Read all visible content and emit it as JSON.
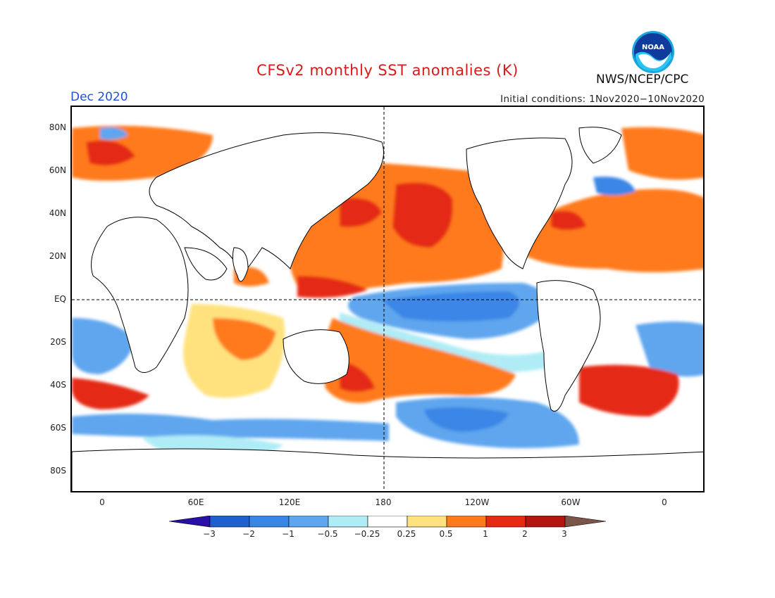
{
  "header": {
    "title": "CFSv2 monthly SST anomalies (K)",
    "month": "Dec 2020",
    "initial_conditions": "Initial conditions: 1Nov2020−10Nov2020",
    "agency": "NWS/NCEP/CPC",
    "logo_text": "NOAA"
  },
  "map": {
    "lat_ticks": [
      "80N",
      "60N",
      "40N",
      "20N",
      "EQ",
      "20S",
      "40S",
      "60S",
      "80S"
    ],
    "lon_ticks": [
      "0",
      "60E",
      "120E",
      "180",
      "120W",
      "60W",
      "0"
    ]
  },
  "colorbar": {
    "labels": [
      "−3",
      "−2",
      "−1",
      "−0.5",
      "−0.25",
      "0.25",
      "0.5",
      "1",
      "2",
      "3"
    ],
    "colors": [
      "#2a0ea8",
      "#1f5fd0",
      "#3a86e6",
      "#5fa6ee",
      "#b0ecf5",
      "#ffffff",
      "#ffe27e",
      "#ff7a1a",
      "#e42a12",
      "#b4150f",
      "#7a5548"
    ]
  },
  "colors": {
    "title": "#d81c1c",
    "month": "#1f4fe0",
    "land": "#ffffff",
    "coast": "#000000"
  }
}
